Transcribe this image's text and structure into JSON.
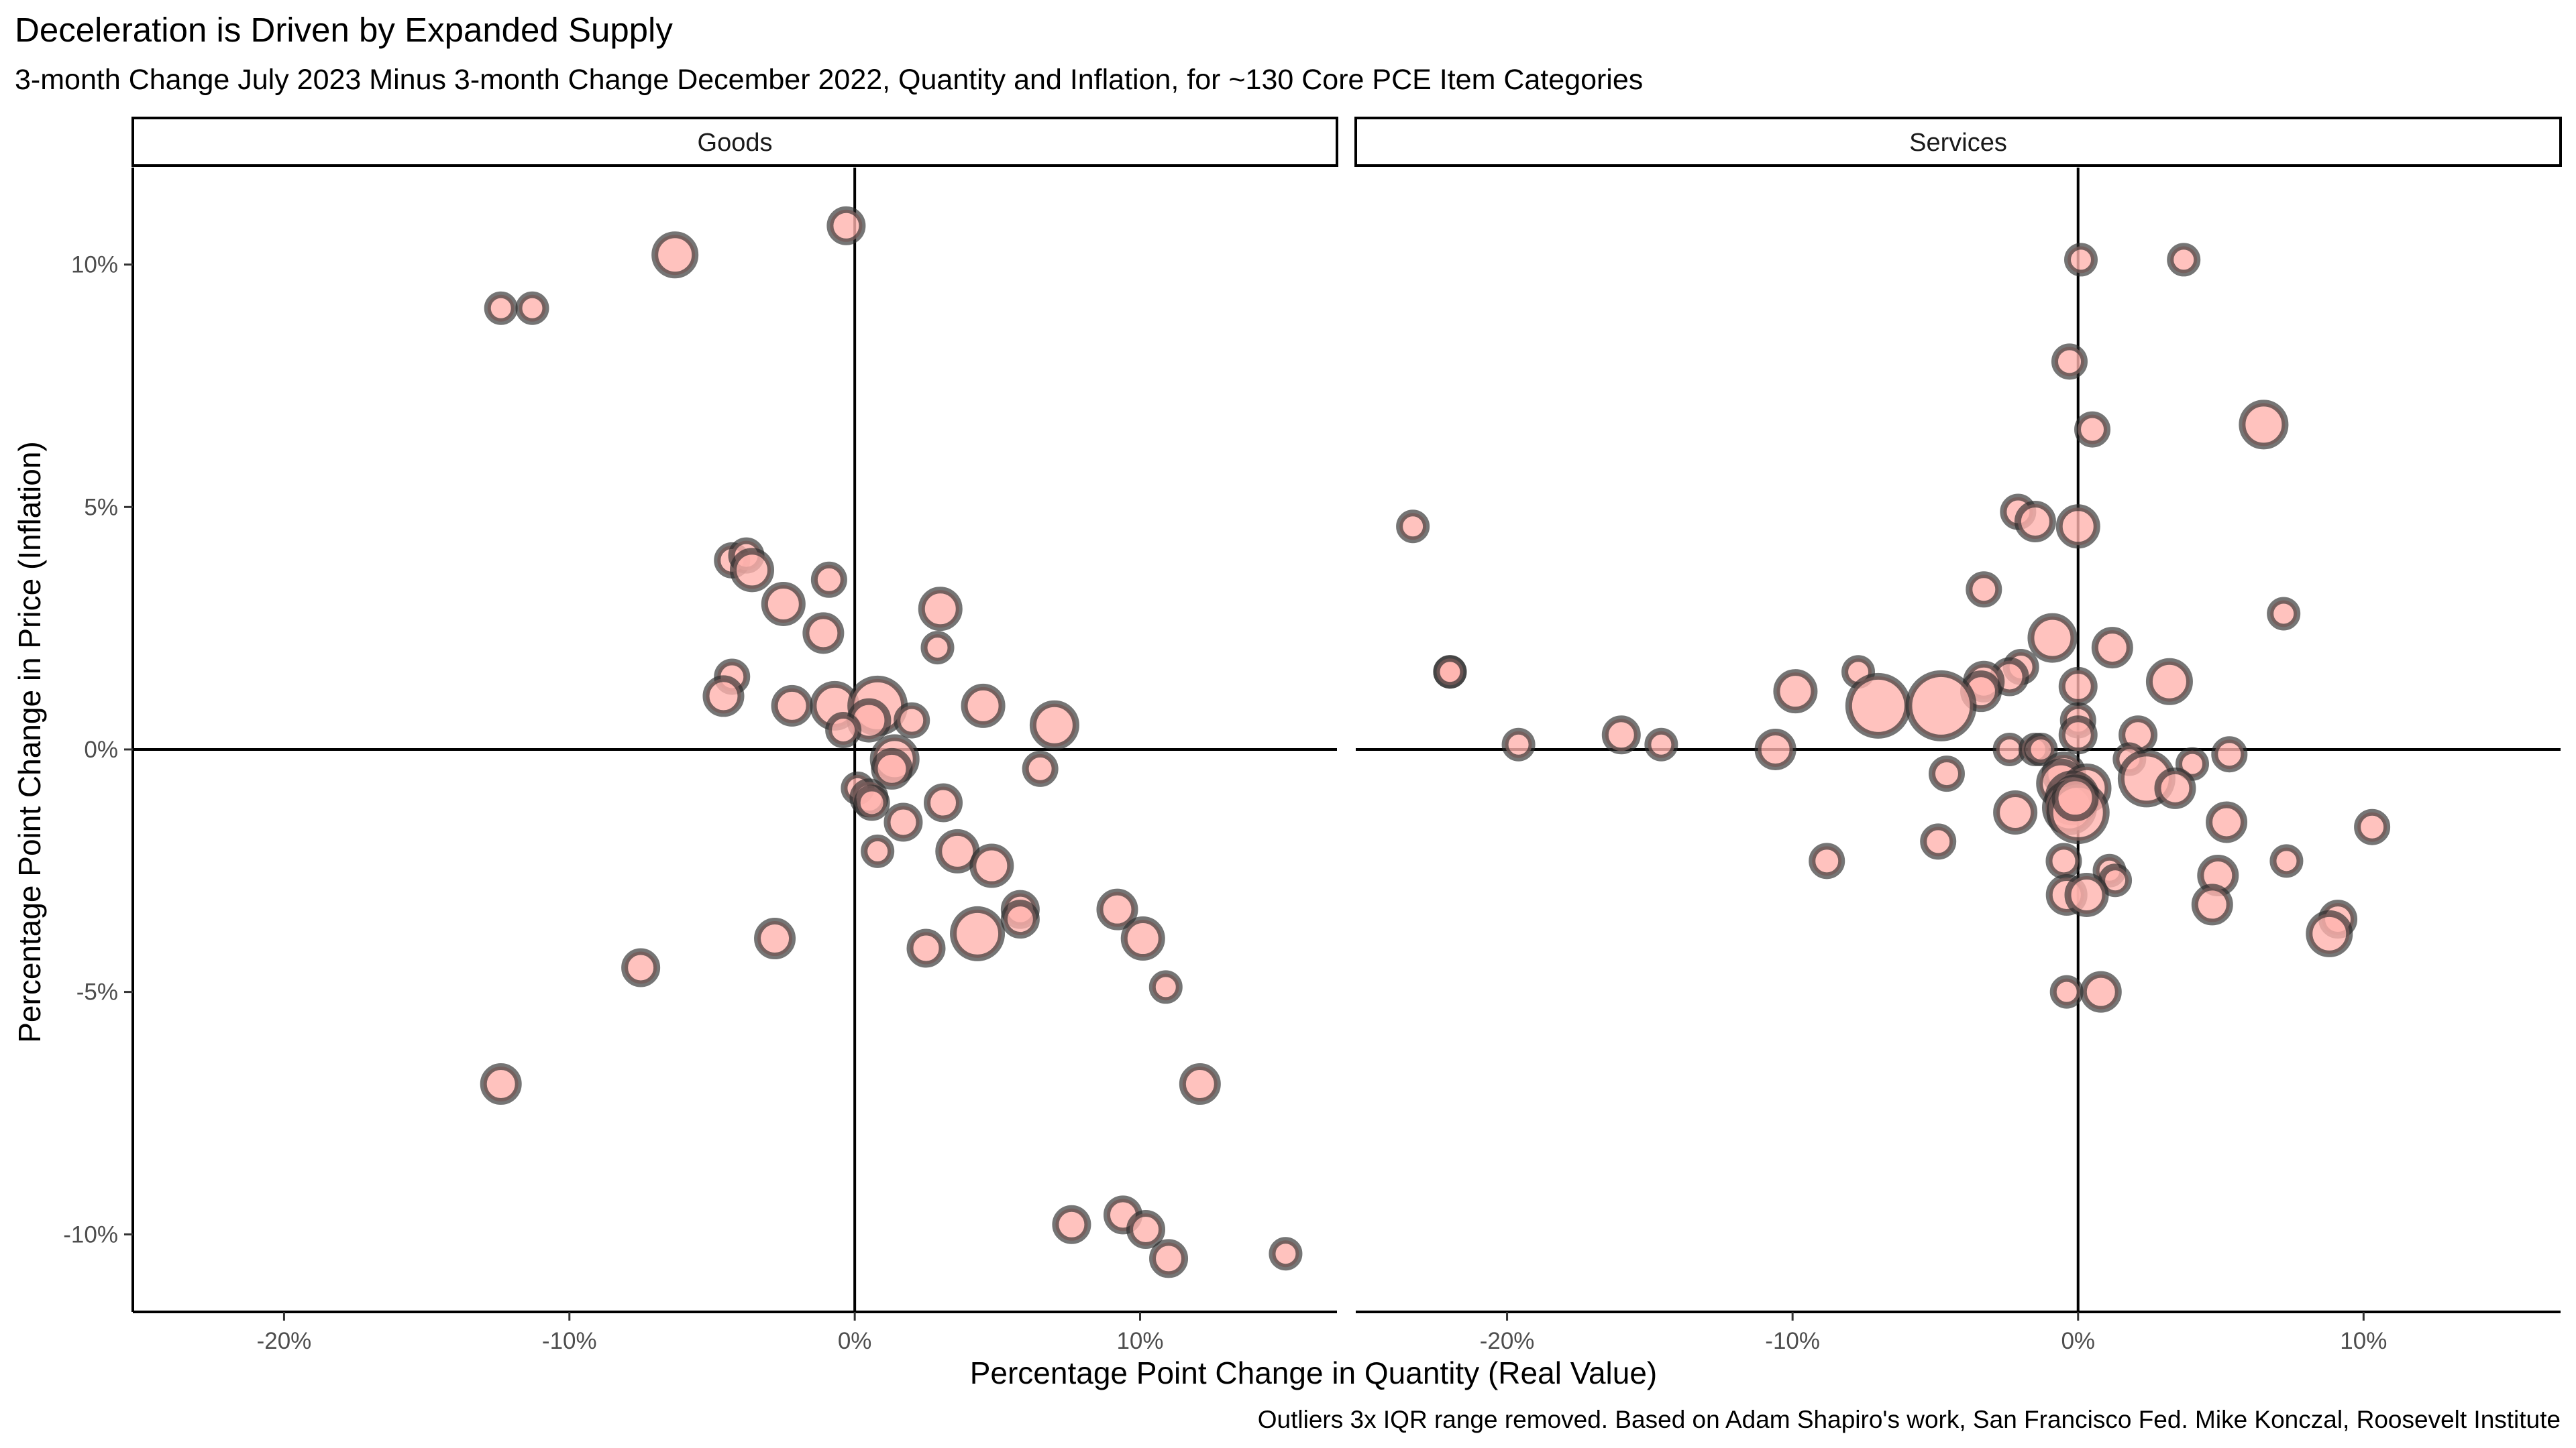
{
  "chart_data": {
    "type": "scatter",
    "title": "Deceleration is Driven by Expanded Supply",
    "subtitle": "3-month Change July 2023 Minus 3-month Change December 2022, Quantity and Inflation, for ~130 Core PCE Item Categories",
    "xlabel": "Percentage Point Change in Quantity (Real Value)",
    "ylabel": "Percentage Point Change in Price (Inflation)",
    "caption": "Outliers 3x IQR range removed. Based on Adam Shapiro's work, San Francisco Fed. Mike Konczal, Roosevelt Institute",
    "xlim": [
      -25.3,
      16.9
    ],
    "ylim": [
      -11.6,
      12.0
    ],
    "x_ticks": [
      -20,
      -10,
      0,
      10
    ],
    "x_tick_labels": [
      "-20%",
      "-10%",
      "0%",
      "10%"
    ],
    "y_ticks": [
      -10,
      -5,
      0,
      5,
      10
    ],
    "y_tick_labels": [
      "-10%",
      "-5%",
      "0%",
      "5%",
      "10%"
    ],
    "grid": false,
    "legend": "none",
    "point_fill": "#ffb3ae",
    "point_stroke": "#2b2b2b",
    "size_encoding": "circle size shown, no size legend",
    "panels": [
      {
        "name": "Goods",
        "points": [
          {
            "x": -0.3,
            "y": 10.8,
            "s": 1.2
          },
          {
            "x": -6.3,
            "y": 10.2,
            "s": 1.5
          },
          {
            "x": -12.4,
            "y": 9.1,
            "s": 1.0
          },
          {
            "x": -11.3,
            "y": 9.1,
            "s": 1.0
          },
          {
            "x": -4.3,
            "y": 3.9,
            "s": 1.1
          },
          {
            "x": -3.8,
            "y": 4.0,
            "s": 1.1
          },
          {
            "x": -3.6,
            "y": 3.7,
            "s": 1.4
          },
          {
            "x": -0.9,
            "y": 3.5,
            "s": 1.1
          },
          {
            "x": -2.5,
            "y": 3.0,
            "s": 1.4
          },
          {
            "x": -1.1,
            "y": 2.4,
            "s": 1.3
          },
          {
            "x": 3.0,
            "y": 2.9,
            "s": 1.4
          },
          {
            "x": 2.9,
            "y": 2.1,
            "s": 1.0
          },
          {
            "x": -4.3,
            "y": 1.5,
            "s": 1.1
          },
          {
            "x": -4.6,
            "y": 1.1,
            "s": 1.3
          },
          {
            "x": -2.2,
            "y": 0.9,
            "s": 1.3
          },
          {
            "x": -0.7,
            "y": 0.9,
            "s": 1.6
          },
          {
            "x": 0.8,
            "y": 0.9,
            "s": 2.0
          },
          {
            "x": 0.5,
            "y": 0.6,
            "s": 1.4
          },
          {
            "x": 2.0,
            "y": 0.6,
            "s": 1.1
          },
          {
            "x": -0.4,
            "y": 0.4,
            "s": 1.1
          },
          {
            "x": 4.5,
            "y": 0.9,
            "s": 1.4
          },
          {
            "x": 7.0,
            "y": 0.5,
            "s": 1.6
          },
          {
            "x": 1.4,
            "y": -0.2,
            "s": 1.6
          },
          {
            "x": 1.3,
            "y": -0.4,
            "s": 1.3
          },
          {
            "x": 6.5,
            "y": -0.4,
            "s": 1.1
          },
          {
            "x": 0.1,
            "y": -0.8,
            "s": 1.0
          },
          {
            "x": 0.5,
            "y": -1.0,
            "s": 1.2
          },
          {
            "x": 0.6,
            "y": -1.1,
            "s": 1.1
          },
          {
            "x": 3.1,
            "y": -1.1,
            "s": 1.2
          },
          {
            "x": 1.7,
            "y": -1.5,
            "s": 1.2
          },
          {
            "x": 0.8,
            "y": -2.1,
            "s": 1.0
          },
          {
            "x": 3.6,
            "y": -2.1,
            "s": 1.4
          },
          {
            "x": 4.8,
            "y": -2.4,
            "s": 1.4
          },
          {
            "x": 5.8,
            "y": -3.3,
            "s": 1.2
          },
          {
            "x": 5.8,
            "y": -3.5,
            "s": 1.2
          },
          {
            "x": 4.3,
            "y": -3.8,
            "s": 1.8
          },
          {
            "x": -2.8,
            "y": -3.9,
            "s": 1.3
          },
          {
            "x": 2.5,
            "y": -4.1,
            "s": 1.2
          },
          {
            "x": 9.2,
            "y": -3.3,
            "s": 1.3
          },
          {
            "x": 10.1,
            "y": -3.9,
            "s": 1.4
          },
          {
            "x": -7.5,
            "y": -4.5,
            "s": 1.2
          },
          {
            "x": 10.9,
            "y": -4.9,
            "s": 1.0
          },
          {
            "x": -12.4,
            "y": -6.9,
            "s": 1.3
          },
          {
            "x": 12.1,
            "y": -6.9,
            "s": 1.3
          },
          {
            "x": 7.6,
            "y": -9.8,
            "s": 1.2
          },
          {
            "x": 9.4,
            "y": -9.6,
            "s": 1.2
          },
          {
            "x": 10.2,
            "y": -9.9,
            "s": 1.2
          },
          {
            "x": 11.0,
            "y": -10.5,
            "s": 1.2
          },
          {
            "x": 15.1,
            "y": -10.4,
            "s": 1.0
          }
        ]
      },
      {
        "name": "Services",
        "points": [
          {
            "x": 0.1,
            "y": 10.1,
            "s": 1.0
          },
          {
            "x": 3.7,
            "y": 10.1,
            "s": 1.0
          },
          {
            "x": -0.3,
            "y": 8.0,
            "s": 1.1
          },
          {
            "x": 0.5,
            "y": 6.6,
            "s": 1.1
          },
          {
            "x": 6.5,
            "y": 6.7,
            "s": 1.6
          },
          {
            "x": -23.3,
            "y": 4.6,
            "s": 1.0
          },
          {
            "x": -2.1,
            "y": 4.9,
            "s": 1.1
          },
          {
            "x": -1.5,
            "y": 4.7,
            "s": 1.3
          },
          {
            "x": 0.0,
            "y": 4.6,
            "s": 1.4
          },
          {
            "x": -3.3,
            "y": 3.3,
            "s": 1.1
          },
          {
            "x": 7.2,
            "y": 2.8,
            "s": 1.0
          },
          {
            "x": -0.9,
            "y": 2.3,
            "s": 1.6
          },
          {
            "x": 1.2,
            "y": 2.1,
            "s": 1.3
          },
          {
            "x": -22.0,
            "y": 1.6,
            "s": 1.0
          },
          {
            "x": -22.0,
            "y": 1.6,
            "s": 1.0
          },
          {
            "x": -7.7,
            "y": 1.6,
            "s": 1.0
          },
          {
            "x": -2.0,
            "y": 1.7,
            "s": 1.1
          },
          {
            "x": -2.4,
            "y": 1.5,
            "s": 1.2
          },
          {
            "x": -3.3,
            "y": 1.4,
            "s": 1.3
          },
          {
            "x": -3.4,
            "y": 1.2,
            "s": 1.3
          },
          {
            "x": -9.9,
            "y": 1.2,
            "s": 1.4
          },
          {
            "x": -7.0,
            "y": 0.9,
            "s": 2.2
          },
          {
            "x": -4.8,
            "y": 0.9,
            "s": 2.4
          },
          {
            "x": 0.0,
            "y": 1.3,
            "s": 1.2
          },
          {
            "x": 3.2,
            "y": 1.4,
            "s": 1.5
          },
          {
            "x": 0.0,
            "y": 0.6,
            "s": 1.1
          },
          {
            "x": 0.0,
            "y": 0.3,
            "s": 1.2
          },
          {
            "x": -16.0,
            "y": 0.3,
            "s": 1.2
          },
          {
            "x": -14.6,
            "y": 0.1,
            "s": 1.0
          },
          {
            "x": -19.6,
            "y": 0.1,
            "s": 1.0
          },
          {
            "x": -10.6,
            "y": 0.0,
            "s": 1.3
          },
          {
            "x": 2.1,
            "y": 0.3,
            "s": 1.2
          },
          {
            "x": -2.4,
            "y": 0.0,
            "s": 1.0
          },
          {
            "x": -1.5,
            "y": 0.0,
            "s": 1.0
          },
          {
            "x": -1.3,
            "y": 0.0,
            "s": 1.0
          },
          {
            "x": 5.3,
            "y": -0.1,
            "s": 1.1
          },
          {
            "x": 4.0,
            "y": -0.3,
            "s": 1.0
          },
          {
            "x": -4.6,
            "y": -0.5,
            "s": 1.1
          },
          {
            "x": 1.8,
            "y": -0.2,
            "s": 1.0
          },
          {
            "x": -0.5,
            "y": -0.5,
            "s": 1.4
          },
          {
            "x": 2.4,
            "y": -0.6,
            "s": 1.9
          },
          {
            "x": 3.4,
            "y": -0.8,
            "s": 1.3
          },
          {
            "x": -0.6,
            "y": -0.7,
            "s": 1.6
          },
          {
            "x": 0.3,
            "y": -0.8,
            "s": 1.6
          },
          {
            "x": -0.2,
            "y": -1.0,
            "s": 1.8
          },
          {
            "x": -0.3,
            "y": -1.2,
            "s": 1.8
          },
          {
            "x": 0.0,
            "y": -1.3,
            "s": 2.1
          },
          {
            "x": -0.1,
            "y": -1.0,
            "s": 1.5
          },
          {
            "x": -2.2,
            "y": -1.3,
            "s": 1.4
          },
          {
            "x": 5.2,
            "y": -1.5,
            "s": 1.3
          },
          {
            "x": -4.9,
            "y": -1.9,
            "s": 1.1
          },
          {
            "x": 10.3,
            "y": -1.6,
            "s": 1.1
          },
          {
            "x": -8.8,
            "y": -2.3,
            "s": 1.1
          },
          {
            "x": -0.5,
            "y": -2.3,
            "s": 1.1
          },
          {
            "x": 7.3,
            "y": -2.3,
            "s": 1.0
          },
          {
            "x": 1.1,
            "y": -2.5,
            "s": 1.0
          },
          {
            "x": 1.3,
            "y": -2.7,
            "s": 1.0
          },
          {
            "x": 4.9,
            "y": -2.6,
            "s": 1.3
          },
          {
            "x": -0.4,
            "y": -3.0,
            "s": 1.3
          },
          {
            "x": 0.3,
            "y": -3.0,
            "s": 1.4
          },
          {
            "x": 4.7,
            "y": -3.2,
            "s": 1.3
          },
          {
            "x": 9.1,
            "y": -3.5,
            "s": 1.2
          },
          {
            "x": 8.8,
            "y": -3.8,
            "s": 1.5
          },
          {
            "x": -0.4,
            "y": -5.0,
            "s": 1.0
          },
          {
            "x": 0.8,
            "y": -5.0,
            "s": 1.3
          }
        ]
      }
    ]
  }
}
